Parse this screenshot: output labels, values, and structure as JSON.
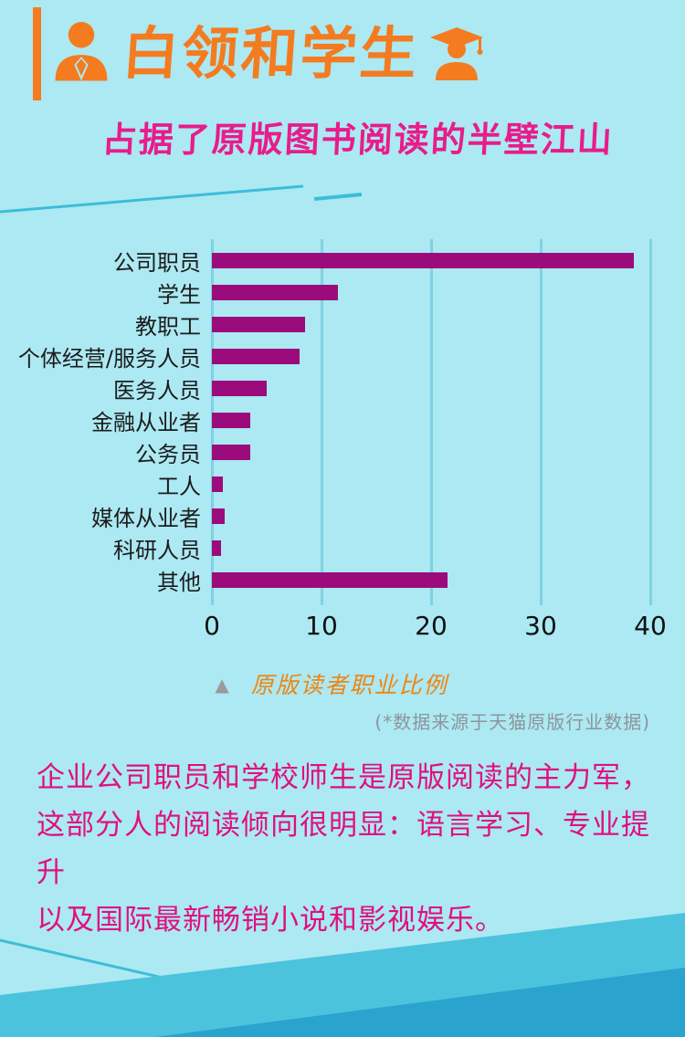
{
  "colors": {
    "background": "#ace9f3",
    "accent_orange": "#f47b1f",
    "magenta_text": "#e81c8a",
    "body_magenta": "#e0107f",
    "bar_color": "#9c0b7c",
    "gridline": "#7fd2e2",
    "deco_line": "#3dbdd8",
    "deco_band_light": "#4cc3dc",
    "deco_band_dark": "#2aa3cf"
  },
  "header": {
    "title": "白领和学生",
    "subtitle": "占据了原版图书阅读的半壁江山",
    "icons": [
      "white-collar-person-icon",
      "graduate-cap-icon"
    ]
  },
  "chart_data": {
    "type": "bar",
    "orientation": "horizontal",
    "title": "原版读者职业比例",
    "categories": [
      "公司职员",
      "学生",
      "教职工",
      "个体经营/服务人员",
      "医务人员",
      "金融从业者",
      "公务员",
      "工人",
      "媒体从业者",
      "科研人员",
      "其他"
    ],
    "values": [
      38.5,
      11.5,
      8.5,
      8,
      5,
      3.5,
      3.5,
      1,
      1.2,
      0.8,
      21.5
    ],
    "xlim": [
      0,
      40
    ],
    "x_ticks": [
      0,
      10,
      20,
      30,
      40
    ],
    "grid": "vertical",
    "legend": "none",
    "bar_color": "#9c0b7c",
    "caption_marker": "▲",
    "caption": "原版读者职业比例",
    "source_note": "(*数据来源于天猫原版行业数据)"
  },
  "body": {
    "line1": "企业公司职员和学校师生是原版阅读的主力军，",
    "line2": "这部分人的阅读倾向很明显：语言学习、专业提升",
    "line3": "以及国际最新畅销小说和影视娱乐。"
  }
}
